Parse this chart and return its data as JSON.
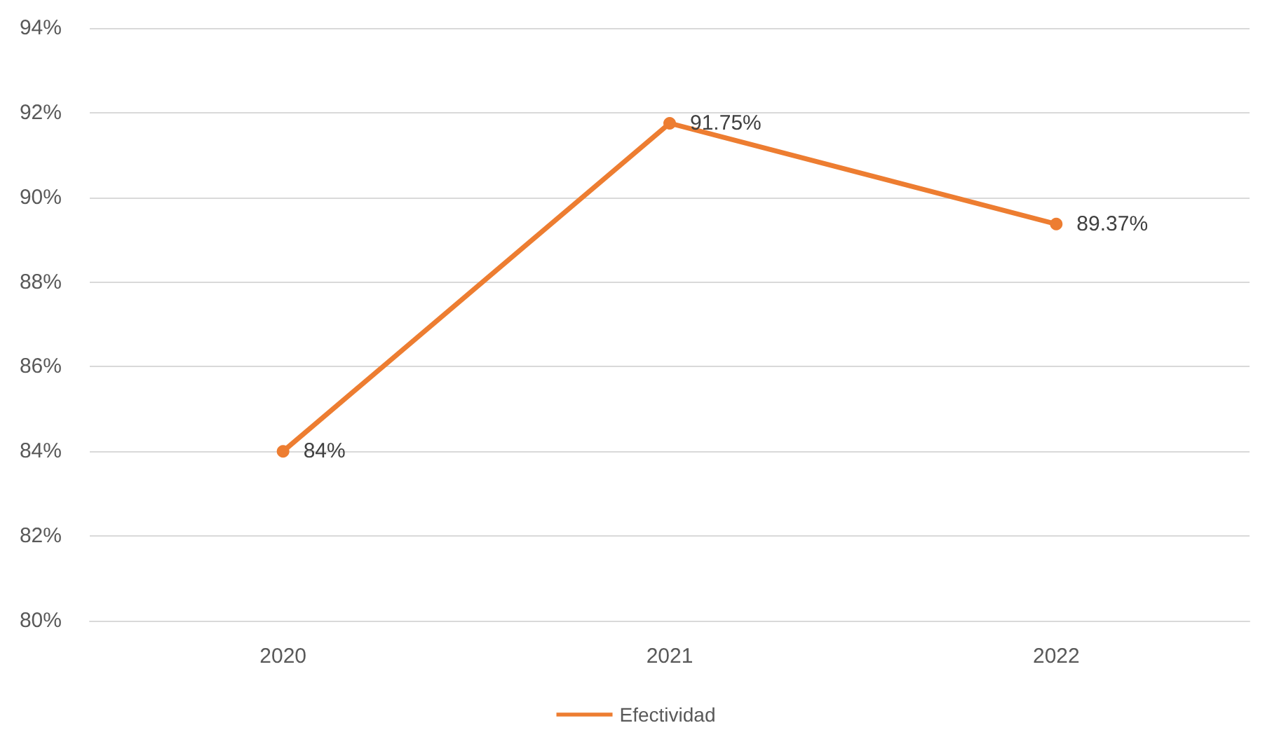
{
  "chart_data": {
    "type": "line",
    "categories": [
      "2020",
      "2021",
      "2022"
    ],
    "series": [
      {
        "name": "Efectividad",
        "color": "#ed7d31",
        "values": [
          84,
          91.75,
          89.37
        ],
        "value_labels": [
          "84%",
          "91.75%",
          "89.37%"
        ]
      }
    ],
    "ylim": [
      80,
      94
    ],
    "yticks": [
      {
        "value": 80,
        "label": "80%"
      },
      {
        "value": 82,
        "label": "82%"
      },
      {
        "value": 84,
        "label": "84%"
      },
      {
        "value": 86,
        "label": "86%"
      },
      {
        "value": 88,
        "label": "88%"
      },
      {
        "value": 90,
        "label": "90%"
      },
      {
        "value": 92,
        "label": "92%"
      },
      {
        "value": 94,
        "label": "94%"
      }
    ],
    "grid": "y",
    "legend": "bottom",
    "marker": "circle",
    "line_style": "solid"
  }
}
